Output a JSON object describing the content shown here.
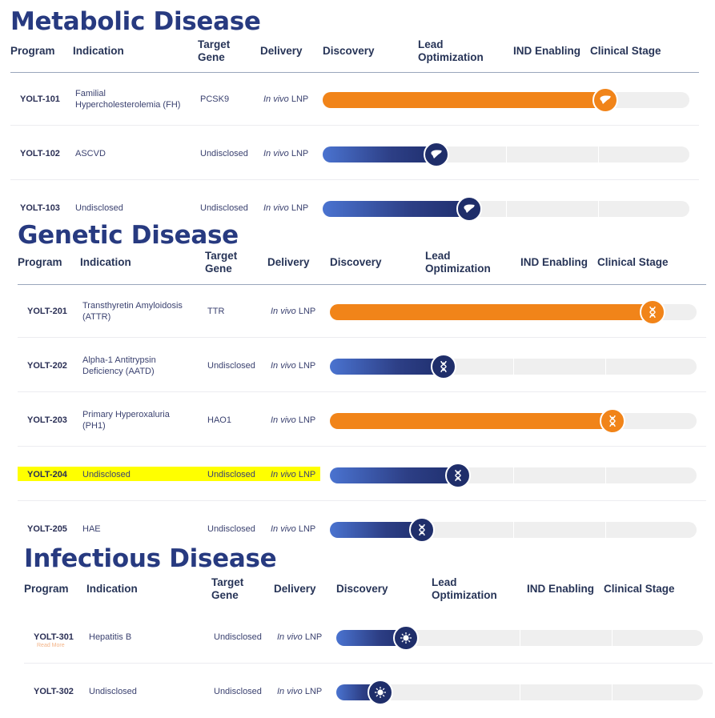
{
  "colors": {
    "title": "#273a80",
    "blue": "#1f2e6a",
    "orange": "#f18419",
    "highlight": "#ffff00"
  },
  "headers": {
    "program": "Program",
    "indication": "Indication",
    "target_l1": "Target",
    "target_l2": "Gene",
    "delivery": "Delivery",
    "discovery": "Discovery",
    "lead_l1": "Lead",
    "lead_l2": "Optimization",
    "ind": "IND Enabling",
    "clinical": "Clinical Stage"
  },
  "sections": {
    "metabolic": {
      "title": "Metabolic Disease",
      "icon": "liver-icon",
      "rows": [
        {
          "program": "YOLT-101",
          "ind1": "Familial",
          "ind2": "Hypercholesterolemia (FH)",
          "gene": "PCSK9",
          "iv": "In vivo",
          "lnp": "LNP",
          "color": "orange",
          "progress": 0.77
        },
        {
          "program": "YOLT-102",
          "ind1": "ASCVD",
          "ind2": "",
          "gene": "Undisclosed",
          "iv": "In vivo",
          "lnp": "LNP",
          "color": "blue",
          "progress": 0.31
        },
        {
          "program": "YOLT-103",
          "ind1": "Undisclosed",
          "ind2": "",
          "gene": "Undisclosed",
          "iv": "In vivo",
          "lnp": "LNP",
          "color": "blue",
          "progress": 0.4
        }
      ]
    },
    "genetic": {
      "title": "Genetic Disease",
      "icon": "dna-icon",
      "rows": [
        {
          "program": "YOLT-201",
          "ind1": "Transthyretin Amyloidosis",
          "ind2": "(ATTR)",
          "gene": "TTR",
          "iv": "In vivo",
          "lnp": "LNP",
          "color": "orange",
          "progress": 0.88
        },
        {
          "program": "YOLT-202",
          "ind1": "Alpha-1 Antitrypsin",
          "ind2": "Deficiency (AATD)",
          "gene": "Undisclosed",
          "iv": "In vivo",
          "lnp": "LNP",
          "color": "blue",
          "progress": 0.31
        },
        {
          "program": "YOLT-203",
          "ind1": "Primary Hyperoxaluria",
          "ind2": "(PH1)",
          "gene": "HAO1",
          "iv": "In vivo",
          "lnp": "LNP",
          "color": "orange",
          "progress": 0.77
        },
        {
          "program": "YOLT-204",
          "ind1": "Undisclosed",
          "ind2": "",
          "gene": "Undisclosed",
          "iv": "In vivo",
          "lnp": "LNP",
          "color": "blue",
          "progress": 0.35,
          "highlight": true
        },
        {
          "program": "YOLT-205",
          "ind1": "HAE",
          "ind2": "",
          "gene": "Undisclosed",
          "iv": "In vivo",
          "lnp": "LNP",
          "color": "blue",
          "progress": 0.25
        }
      ]
    },
    "infectious": {
      "title": "Infectious Disease",
      "icon": "virus-icon",
      "rows": [
        {
          "program": "YOLT-301",
          "ind1": "Hepatitis B",
          "ind2": "",
          "gene": "Undisclosed",
          "iv": "In vivo",
          "lnp": "LNP",
          "color": "blue",
          "progress": 0.19,
          "readmore": "Read More"
        },
        {
          "program": "YOLT-302",
          "ind1": "Undisclosed",
          "ind2": "",
          "gene": "Undisclosed",
          "iv": "In vivo",
          "lnp": "LNP",
          "color": "blue",
          "progress": 0.12
        }
      ]
    }
  }
}
